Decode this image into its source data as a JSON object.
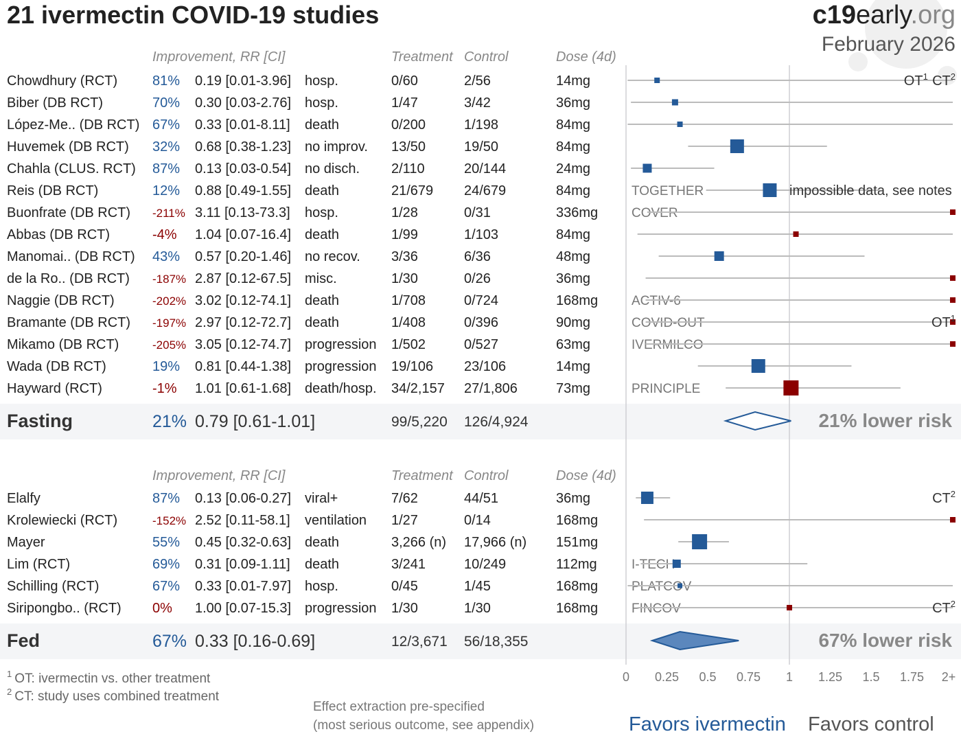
{
  "title": "21 ivermectin COVID-19 studies",
  "brand": {
    "bold": "c19",
    "mid": "early",
    "light": ".org",
    "date": "February 2026"
  },
  "columns": {
    "improvement": "Improvement, RR [CI]",
    "treatment": "Treatment",
    "control": "Control",
    "dose": "Dose (4d)"
  },
  "colors": {
    "favor": "#245a98",
    "against": "#8b0000",
    "band": "#f4f5f7",
    "grid": "#cfcfd3",
    "ci_line": "#bbbbbb",
    "fed_diamond_fill": "#5b87bd"
  },
  "chart_data": {
    "type": "forest",
    "x_axis": {
      "scale": "linear",
      "range": [
        0,
        2
      ],
      "ticks": [
        "0",
        "0.25",
        "0.5",
        "0.75",
        "1",
        "1.25",
        "1.5",
        "1.75",
        "2+"
      ],
      "reference_line": 1
    },
    "groups": [
      {
        "name": "Fasting",
        "studies": [
          {
            "name": "Chowdhury (RCT)",
            "improvement": "81%",
            "rr": 0.19,
            "ci_low": 0.01,
            "ci_high": 3.96,
            "rr_text": "0.19 [0.01-3.96]",
            "outcome": "hosp.",
            "treatment": "0/60",
            "control": "2/56",
            "dose": "14mg",
            "weight": 2,
            "label": "",
            "notes": [
              {
                "text": "OT",
                "sup": "1"
              },
              {
                "text": "CT",
                "sup": "2"
              }
            ]
          },
          {
            "name": "Biber (DB RCT)",
            "improvement": "70%",
            "rr": 0.3,
            "ci_low": 0.03,
            "ci_high": 2.76,
            "rr_text": "0.30 [0.03-2.76]",
            "outcome": "hosp.",
            "treatment": "1/47",
            "control": "3/42",
            "dose": "36mg",
            "weight": 2.5,
            "label": "",
            "notes": []
          },
          {
            "name": "López-Me.. (DB RCT)",
            "improvement": "67%",
            "rr": 0.33,
            "ci_low": 0.01,
            "ci_high": 8.11,
            "rr_text": "0.33 [0.01-8.11]",
            "outcome": "death",
            "treatment": "0/200",
            "control": "1/198",
            "dose": "84mg",
            "weight": 2,
            "label": "",
            "notes": []
          },
          {
            "name": "Huvemek (DB RCT)",
            "improvement": "32%",
            "rr": 0.68,
            "ci_low": 0.38,
            "ci_high": 1.23,
            "rr_text": "0.68 [0.38-1.23]",
            "outcome": "no improv.",
            "treatment": "13/50",
            "control": "19/50",
            "dose": "84mg",
            "weight": 8,
            "label": "",
            "notes": []
          },
          {
            "name": "Chahla (CLUS. RCT)",
            "improvement": "87%",
            "rr": 0.13,
            "ci_low": 0.03,
            "ci_high": 0.54,
            "rr_text": "0.13 [0.03-0.54]",
            "outcome": "no disch.",
            "treatment": "2/110",
            "control": "20/144",
            "dose": "24mg",
            "weight": 4.5,
            "label": "",
            "notes": []
          },
          {
            "name": "Reis (DB RCT)",
            "improvement": "12%",
            "rr": 0.88,
            "ci_low": 0.49,
            "ci_high": 1.55,
            "rr_text": "0.88 [0.49-1.55]",
            "outcome": "death",
            "treatment": "21/679",
            "control": "24/679",
            "dose": "84mg",
            "weight": 8,
            "label": "TOGETHER",
            "side_note": "impossible data, see notes",
            "notes": []
          },
          {
            "name": "Buonfrate (DB RCT)",
            "improvement": "-211%",
            "rr": 3.11,
            "ci_low": 0.13,
            "ci_high": 73.3,
            "rr_text": "3.11 [0.13-73.3]",
            "outcome": "hosp.",
            "treatment": "1/28",
            "control": "0/31",
            "dose": "336mg",
            "weight": 2,
            "label": "COVER",
            "notes": []
          },
          {
            "name": "Abbas (DB RCT)",
            "improvement": "-4%",
            "rr": 1.04,
            "ci_low": 0.07,
            "ci_high": 16.4,
            "rr_text": "1.04 [0.07-16.4]",
            "outcome": "death",
            "treatment": "1/99",
            "control": "1/103",
            "dose": "84mg",
            "weight": 2,
            "label": "",
            "notes": []
          },
          {
            "name": "Manomai.. (DB RCT)",
            "improvement": "43%",
            "rr": 0.57,
            "ci_low": 0.2,
            "ci_high": 1.46,
            "rr_text": "0.57 [0.20-1.46]",
            "outcome": "no recov.",
            "treatment": "3/36",
            "control": "6/36",
            "dose": "48mg",
            "weight": 5,
            "label": "",
            "notes": []
          },
          {
            "name": "de la Ro.. (DB RCT)",
            "improvement": "-187%",
            "rr": 2.87,
            "ci_low": 0.12,
            "ci_high": 67.5,
            "rr_text": "2.87 [0.12-67.5]",
            "outcome": "misc.",
            "treatment": "1/30",
            "control": "0/26",
            "dose": "36mg",
            "weight": 2,
            "label": "",
            "notes": []
          },
          {
            "name": "Naggie (DB RCT)",
            "improvement": "-202%",
            "rr": 3.02,
            "ci_low": 0.12,
            "ci_high": 74.1,
            "rr_text": "3.02 [0.12-74.1]",
            "outcome": "death",
            "treatment": "1/708",
            "control": "0/724",
            "dose": "168mg",
            "weight": 2,
            "label": "ACTIV-6",
            "notes": []
          },
          {
            "name": "Bramante (DB RCT)",
            "improvement": "-197%",
            "rr": 2.97,
            "ci_low": 0.12,
            "ci_high": 72.7,
            "rr_text": "2.97 [0.12-72.7]",
            "outcome": "death",
            "treatment": "1/408",
            "control": "0/396",
            "dose": "90mg",
            "weight": 2,
            "label": "COVID-OUT",
            "notes": [
              {
                "text": "OT",
                "sup": "1"
              }
            ]
          },
          {
            "name": "Mikamo (DB RCT)",
            "improvement": "-205%",
            "rr": 3.05,
            "ci_low": 0.12,
            "ci_high": 74.7,
            "rr_text": "3.05 [0.12-74.7]",
            "outcome": "progression",
            "treatment": "1/502",
            "control": "0/527",
            "dose": "63mg",
            "weight": 2,
            "label": "IVERMILCO",
            "notes": []
          },
          {
            "name": "Wada (DB RCT)",
            "improvement": "19%",
            "rr": 0.81,
            "ci_low": 0.44,
            "ci_high": 1.38,
            "rr_text": "0.81 [0.44-1.38]",
            "outcome": "progression",
            "treatment": "19/106",
            "control": "23/106",
            "dose": "14mg",
            "weight": 8,
            "label": "",
            "notes": []
          },
          {
            "name": "Hayward (RCT)",
            "improvement": "-1%",
            "rr": 1.01,
            "ci_low": 0.61,
            "ci_high": 1.68,
            "rr_text": "1.01 [0.61-1.68]",
            "outcome": "death/hosp.",
            "treatment": "34/2,157",
            "control": "27/1,806",
            "dose": "73mg",
            "weight": 9,
            "label": "PRINCIPLE",
            "notes": []
          }
        ],
        "summary": {
          "improvement": "21%",
          "rr": 0.79,
          "ci_low": 0.61,
          "ci_high": 1.01,
          "rr_text": "0.79 [0.61-1.01]",
          "treatment": "99/5,220",
          "control": "126/4,924",
          "result": "21% lower risk"
        }
      },
      {
        "name": "Fed",
        "studies": [
          {
            "name": "Elalfy",
            "improvement": "87%",
            "rr": 0.13,
            "ci_low": 0.06,
            "ci_high": 0.27,
            "rr_text": "0.13 [0.06-0.27]",
            "outcome": "viral+",
            "treatment": "7/62",
            "control": "44/51",
            "dose": "36mg",
            "weight": 7,
            "label": "",
            "notes": [
              {
                "text": "CT",
                "sup": "2"
              }
            ]
          },
          {
            "name": "Krolewiecki (RCT)",
            "improvement": "-152%",
            "rr": 2.52,
            "ci_low": 0.11,
            "ci_high": 58.1,
            "rr_text": "2.52 [0.11-58.1]",
            "outcome": "ventilation",
            "treatment": "1/27",
            "control": "0/14",
            "dose": "168mg",
            "weight": 2,
            "label": "",
            "notes": []
          },
          {
            "name": "Mayer",
            "improvement": "55%",
            "rr": 0.45,
            "ci_low": 0.32,
            "ci_high": 0.63,
            "rr_text": "0.45 [0.32-0.63]",
            "outcome": "death",
            "treatment": "3,266 (n)",
            "control": "17,966 (n)",
            "dose": "151mg",
            "weight": 9,
            "label": "",
            "notes": []
          },
          {
            "name": "Lim (RCT)",
            "improvement": "69%",
            "rr": 0.31,
            "ci_low": 0.09,
            "ci_high": 1.11,
            "rr_text": "0.31 [0.09-1.11]",
            "outcome": "death",
            "treatment": "3/241",
            "control": "10/249",
            "dose": "112mg",
            "weight": 4,
            "label": "I-TECH",
            "notes": []
          },
          {
            "name": "Schilling (RCT)",
            "improvement": "67%",
            "rr": 0.33,
            "ci_low": 0.01,
            "ci_high": 7.97,
            "rr_text": "0.33 [0.01-7.97]",
            "outcome": "hosp.",
            "treatment": "0/45",
            "control": "1/45",
            "dose": "168mg",
            "weight": 1.5,
            "label": "PLATCOV",
            "notes": []
          },
          {
            "name": "Siripongbo.. (RCT)",
            "improvement": "0%",
            "rr": 1.0,
            "ci_low": 0.07,
            "ci_high": 15.3,
            "rr_text": "1.00 [0.07-15.3]",
            "outcome": "progression",
            "treatment": "1/30",
            "control": "1/30",
            "dose": "168mg",
            "weight": 2,
            "label": "FINCOV",
            "notes": [
              {
                "text": "CT",
                "sup": "2"
              }
            ]
          }
        ],
        "summary": {
          "improvement": "67%",
          "rr": 0.33,
          "ci_low": 0.16,
          "ci_high": 0.69,
          "rr_text": "0.33 [0.16-0.69]",
          "treatment": "12/3,671",
          "control": "56/18,355",
          "result": "67% lower risk"
        }
      }
    ]
  },
  "footnotes": [
    {
      "sup": "1",
      "text": "OT: ivermectin vs. other treatment"
    },
    {
      "sup": "2",
      "text": "CT: study uses combined treatment"
    }
  ],
  "method_note": [
    "Effect extraction pre-specified",
    "(most serious outcome, see appendix)"
  ],
  "favors": {
    "left": "Favors ivermectin",
    "right": "Favors control"
  }
}
